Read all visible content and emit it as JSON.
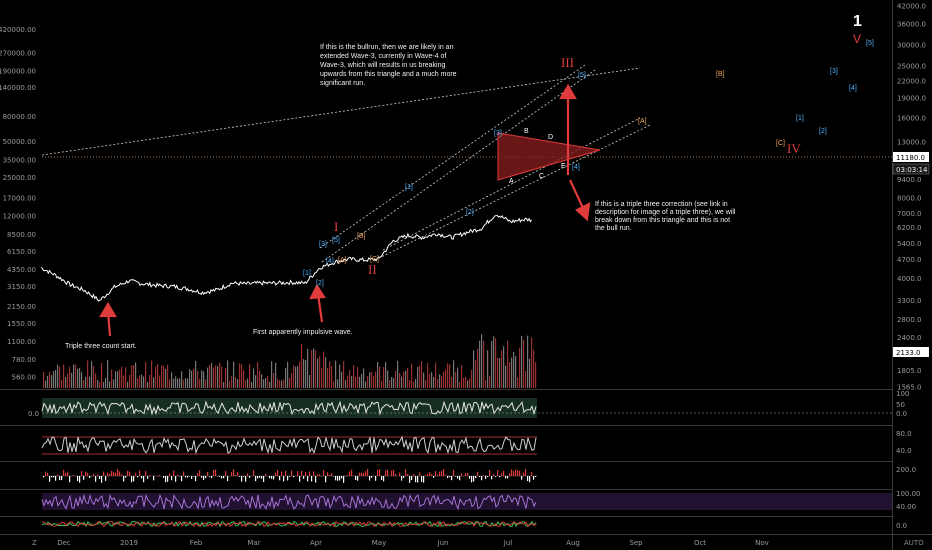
{
  "colors": {
    "bg": "#000000",
    "price": "#ffffff",
    "red": "#e23b3b",
    "blue": "#4fb3ff",
    "orange": "#f0a860",
    "guide": "#c8c8c8",
    "hline": "#e2a06a",
    "volume": "#b43a3a",
    "rsi": "#d0d0d0",
    "macd": "#4caf50",
    "stoch": "#9c6bd6"
  },
  "chart_data": {
    "type": "line",
    "title": "",
    "price_series": {
      "name": "",
      "x": [
        "2018-11-20",
        "2018-11-27",
        "2018-12-04",
        "2018-12-11",
        "2018-12-18",
        "2018-12-25",
        "2019-01-01",
        "2019-01-08",
        "2019-01-15",
        "2019-01-22",
        "2019-01-29",
        "2019-02-05",
        "2019-02-12",
        "2019-02-19",
        "2019-02-26",
        "2019-03-05",
        "2019-03-12",
        "2019-03-19",
        "2019-03-26",
        "2019-04-02",
        "2019-04-09",
        "2019-04-16",
        "2019-04-23",
        "2019-04-30",
        "2019-05-07",
        "2019-05-14",
        "2019-05-21",
        "2019-05-28",
        "2019-06-04",
        "2019-06-11",
        "2019-06-18",
        "2019-06-25",
        "2019-07-02",
        "2019-07-09",
        "2019-07-12"
      ],
      "y": [
        4500,
        3900,
        3250,
        2900,
        2400,
        3100,
        3500,
        3300,
        3200,
        3150,
        3000,
        2800,
        2950,
        3350,
        3300,
        3350,
        3350,
        3400,
        3350,
        4500,
        5000,
        5300,
        5200,
        5300,
        7500,
        8300,
        8000,
        8600,
        8000,
        8800,
        9500,
        12500,
        10800,
        11300,
        11180
      ]
    },
    "y_axis": {
      "scale": "log",
      "ticks_left": [
        "420000.00",
        "270000.00",
        "190000.00",
        "140000.00",
        "80000.00",
        "50000.00",
        "35000.00",
        "25000.00",
        "17000.00",
        "12000.00",
        "8500.00",
        "6150.00",
        "4350.00",
        "3150.00",
        "2150.00",
        "1550.00",
        "1100.00",
        "780.00",
        "560.00"
      ],
      "ticks_right": [
        "42000.0",
        "36000.0",
        "30000.0",
        "25000.0",
        "22000.0",
        "19000.0",
        "16000.0",
        "13000.0",
        "9400.0",
        "8000.0",
        "7000.0",
        "6200.0",
        "5400.0",
        "4700.0",
        "4000.0",
        "3300.0",
        "2800.0",
        "2400.0",
        "2100.0",
        "1805.0",
        "1565.0"
      ]
    },
    "x_ticks": [
      "Dec",
      "2019",
      "Feb",
      "Mar",
      "Apr",
      "May",
      "Jun",
      "Jul",
      "Aug",
      "Sep",
      "Oct",
      "Nov"
    ],
    "current_price": "11180.0",
    "countdown": "03:03:14",
    "volume_value": "2133.0",
    "indicators": [
      {
        "name": "",
        "ticks": [
          "100",
          "50",
          "0.0"
        ],
        "left": "0.0"
      },
      {
        "name": "",
        "ticks": [
          "80.0",
          "40.0"
        ]
      },
      {
        "name": "",
        "ticks": [
          "100.00",
          "40.00"
        ]
      },
      {
        "name": "",
        "ticks": [
          "200.0",
          "0.0"
        ]
      }
    ]
  },
  "annotations": {
    "bull": "If this is the bullrun, then we are likely in an extended Wave-3, currently in Wave-4 of Wave-3, which will results in us breaking upwards from this triangle and a much more significant run.",
    "bear": "If this is a triple three correction (see link in description for image of a triple three), we will break down from this triangle and this is not the bull run.",
    "triple": "Triple three count start.",
    "impulsive": "First apparently impulsive wave."
  },
  "wave_labels": {
    "big_one": "1",
    "big_v": "V",
    "v5": "[5]",
    "iii": "III",
    "iv": "IV",
    "ii": "II",
    "i": "I",
    "b_bracket": "[B]",
    "a_bracket": "[A]",
    "c_bracket": "[C]",
    "w3": "[3]",
    "w4": "[4]",
    "w1": "[1]",
    "w2": "[2]",
    "tri": [
      "A",
      "B",
      "C",
      "D",
      "E"
    ]
  },
  "footer": {
    "left": "Z",
    "right": "AUTO"
  }
}
